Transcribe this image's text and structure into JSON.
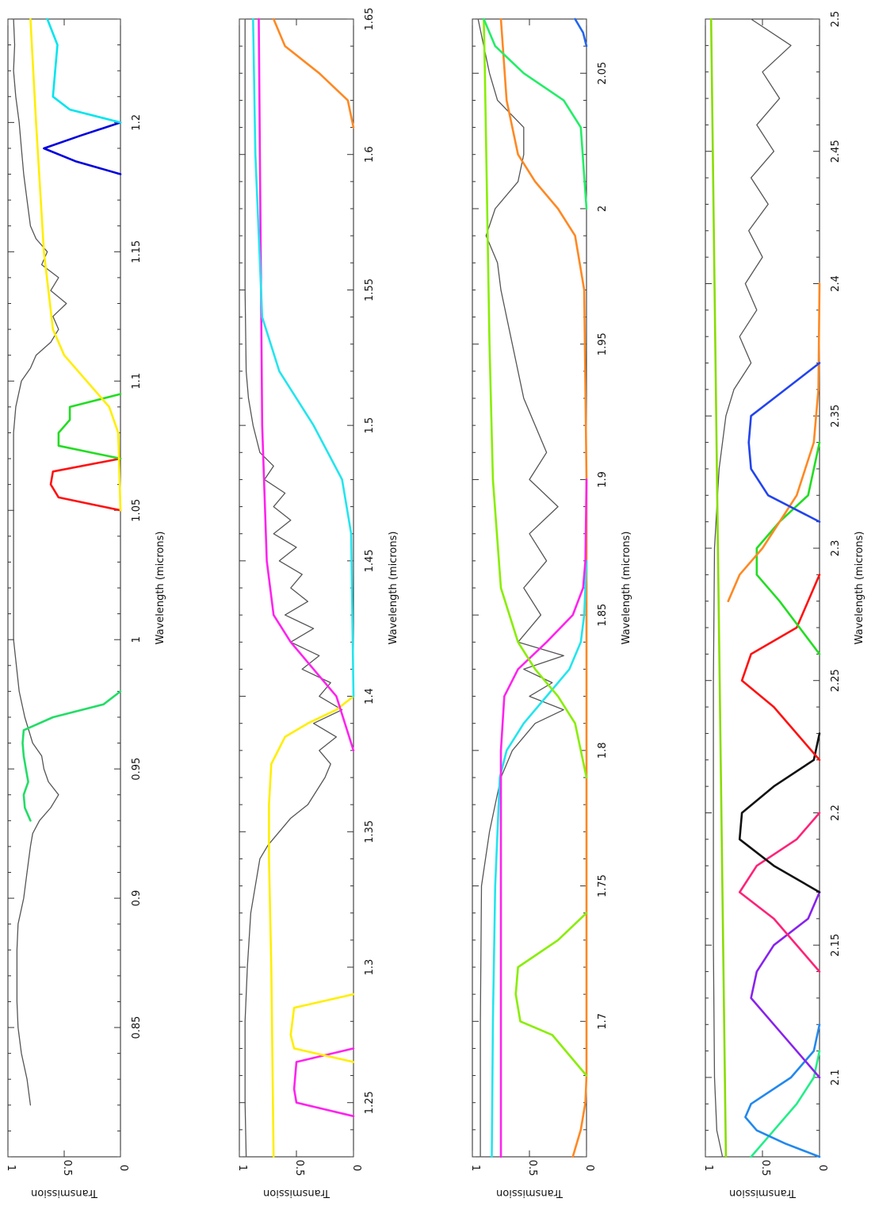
{
  "chart_data": [
    {
      "type": "line",
      "xlabel": "Wavelength (microns)",
      "ylabel": "Transmission",
      "xlim": [
        0.8,
        1.24
      ],
      "ylim": [
        0,
        1
      ],
      "xticks": [
        0.85,
        0.9,
        0.95,
        1,
        1.05,
        1.1,
        1.15,
        1.2
      ],
      "xtick_labels": [
        "0.85",
        "0.9",
        "0.95",
        "1",
        "1.05",
        "1.1",
        "1.15",
        "1.2"
      ],
      "yticks": [
        0,
        0.5,
        1
      ],
      "ytick_labels": [
        "0",
        "0.5",
        "1"
      ],
      "series": [
        {
          "color": "#555555",
          "x": [
            0.82,
            0.83,
            0.84,
            0.85,
            0.86,
            0.87,
            0.88,
            0.89,
            0.9,
            0.91,
            0.92,
            0.925,
            0.93,
            0.935,
            0.94,
            0.945,
            0.95,
            0.955,
            0.96,
            0.97,
            0.98,
            1.0,
            1.02,
            1.04,
            1.06,
            1.08,
            1.09,
            1.1,
            1.105,
            1.11,
            1.115,
            1.12,
            1.125,
            1.13,
            1.135,
            1.14,
            1.145,
            1.15,
            1.155,
            1.16,
            1.17,
            1.18,
            1.19,
            1.2,
            1.21,
            1.22,
            1.23,
            1.24
          ],
          "y": [
            0.8,
            0.83,
            0.88,
            0.91,
            0.92,
            0.92,
            0.92,
            0.91,
            0.86,
            0.83,
            0.8,
            0.78,
            0.72,
            0.62,
            0.55,
            0.64,
            0.68,
            0.7,
            0.78,
            0.85,
            0.9,
            0.95,
            0.95,
            0.95,
            0.95,
            0.95,
            0.93,
            0.88,
            0.8,
            0.75,
            0.62,
            0.55,
            0.6,
            0.48,
            0.62,
            0.55,
            0.7,
            0.65,
            0.75,
            0.8,
            0.83,
            0.86,
            0.88,
            0.9,
            0.93,
            0.95,
            0.94,
            0.95
          ]
        },
        {
          "color": "#22dd66",
          "x": [
            0.93,
            0.935,
            0.94,
            0.945,
            0.95,
            0.955,
            0.96,
            0.965,
            0.97,
            0.975,
            0.98
          ],
          "y": [
            0.8,
            0.85,
            0.86,
            0.82,
            0.84,
            0.86,
            0.87,
            0.86,
            0.6,
            0.15,
            0
          ]
        },
        {
          "color": "#ff1111",
          "x": [
            1.05,
            1.055,
            1.06,
            1.065,
            1.07
          ],
          "y": [
            0,
            0.55,
            0.62,
            0.6,
            0
          ]
        },
        {
          "color": "#22dd22",
          "x": [
            1.07,
            1.075,
            1.08,
            1.085,
            1.09,
            1.095
          ],
          "y": [
            0,
            0.55,
            0.55,
            0.45,
            0.45,
            0
          ]
        },
        {
          "color": "#ffee00",
          "x": [
            1.05,
            1.08,
            1.09,
            1.1,
            1.11,
            1.12,
            1.15,
            1.2,
            1.24
          ],
          "y": [
            0,
            0.02,
            0.1,
            0.3,
            0.5,
            0.6,
            0.68,
            0.75,
            0.8
          ]
        },
        {
          "color": "#0000dd",
          "x": [
            1.18,
            1.185,
            1.19,
            1.195,
            1.2
          ],
          "y": [
            0,
            0.4,
            0.68,
            0.35,
            0
          ]
        },
        {
          "color": "#00e5ee",
          "x": [
            1.2,
            1.205,
            1.21,
            1.22,
            1.23,
            1.24
          ],
          "y": [
            0,
            0.45,
            0.6,
            0.58,
            0.56,
            0.65
          ]
        }
      ]
    },
    {
      "type": "line",
      "xlabel": "Wavelength (microns)",
      "ylabel": "Transmission",
      "xlim": [
        1.23,
        1.65
      ],
      "ylim": [
        0,
        1
      ],
      "xticks": [
        1.25,
        1.3,
        1.35,
        1.4,
        1.45,
        1.5,
        1.55,
        1.6,
        1.65
      ],
      "xtick_labels": [
        "1.25",
        "1.3",
        "1.35",
        "1.4",
        "1.45",
        "1.5",
        "1.55",
        "1.6",
        "1.65"
      ],
      "yticks": [
        0,
        0.5,
        1
      ],
      "ytick_labels": [
        "0",
        "0.5",
        "1"
      ],
      "series": [
        {
          "color": "#555555",
          "x": [
            1.23,
            1.25,
            1.28,
            1.3,
            1.32,
            1.34,
            1.345,
            1.35,
            1.355,
            1.36,
            1.37,
            1.375,
            1.38,
            1.385,
            1.39,
            1.395,
            1.4,
            1.405,
            1.41,
            1.415,
            1.42,
            1.425,
            1.43,
            1.435,
            1.44,
            1.445,
            1.45,
            1.455,
            1.46,
            1.465,
            1.47,
            1.475,
            1.48,
            1.485,
            1.49,
            1.5,
            1.51,
            1.52,
            1.55,
            1.6,
            1.62,
            1.65
          ],
          "y": [
            0.94,
            0.95,
            0.95,
            0.93,
            0.9,
            0.82,
            0.75,
            0.65,
            0.55,
            0.4,
            0.25,
            0.2,
            0.3,
            0.15,
            0.35,
            0.1,
            0.3,
            0.2,
            0.45,
            0.3,
            0.55,
            0.35,
            0.6,
            0.4,
            0.55,
            0.45,
            0.65,
            0.5,
            0.7,
            0.55,
            0.7,
            0.6,
            0.78,
            0.7,
            0.82,
            0.88,
            0.92,
            0.94,
            0.95,
            0.95,
            0.95,
            0.95
          ]
        },
        {
          "color": "#ffee00",
          "x": [
            1.23,
            1.3,
            1.34,
            1.36,
            1.375,
            1.385,
            1.39,
            1.395,
            1.4
          ],
          "y": [
            0.7,
            0.72,
            0.74,
            0.74,
            0.72,
            0.6,
            0.4,
            0.15,
            0
          ]
        },
        {
          "color": "#ff22ee",
          "x": [
            1.245,
            1.25,
            1.255,
            1.265,
            1.27
          ],
          "y": [
            0,
            0.5,
            0.52,
            0.5,
            0
          ]
        },
        {
          "color": "#ffee00",
          "x": [
            1.265,
            1.27,
            1.275,
            1.285,
            1.29
          ],
          "y": [
            0,
            0.52,
            0.55,
            0.52,
            0
          ]
        },
        {
          "color": "#ff22ee",
          "x": [
            1.38,
            1.4,
            1.41,
            1.42,
            1.43,
            1.45,
            1.5,
            1.6,
            1.65
          ],
          "y": [
            0,
            0.15,
            0.35,
            0.55,
            0.7,
            0.76,
            0.8,
            0.82,
            0.83
          ]
        },
        {
          "color": "#22e5ee",
          "x": [
            1.4,
            1.46,
            1.48,
            1.5,
            1.52,
            1.54,
            1.6,
            1.65
          ],
          "y": [
            0,
            0.02,
            0.1,
            0.35,
            0.65,
            0.8,
            0.86,
            0.88
          ]
        },
        {
          "color": "#ff8822",
          "x": [
            1.61,
            1.62,
            1.63,
            1.64,
            1.65
          ],
          "y": [
            0,
            0.05,
            0.3,
            0.6,
            0.7
          ]
        }
      ]
    },
    {
      "type": "line",
      "xlabel": "Wavelength (microns)",
      "ylabel": "Transmission",
      "xlim": [
        1.65,
        2.07
      ],
      "ylim": [
        0,
        1
      ],
      "xticks": [
        1.7,
        1.75,
        1.8,
        1.85,
        1.9,
        1.95,
        2,
        2.05
      ],
      "xtick_labels": [
        "1.7",
        "1.75",
        "1.8",
        "1.85",
        "1.9",
        "1.95",
        "2",
        "2.05"
      ],
      "yticks": [
        0,
        0.5,
        1
      ],
      "ytick_labels": [
        "0",
        "0.5",
        "1"
      ],
      "series": [
        {
          "color": "#555555",
          "x": [
            1.65,
            1.7,
            1.75,
            1.77,
            1.78,
            1.79,
            1.8,
            1.81,
            1.815,
            1.82,
            1.825,
            1.83,
            1.835,
            1.84,
            1.85,
            1.86,
            1.87,
            1.88,
            1.89,
            1.9,
            1.91,
            1.92,
            1.93,
            1.94,
            1.95,
            1.96,
            1.97,
            1.98,
            1.99,
            2.0,
            2.01,
            2.02,
            2.03,
            2.04,
            2.05,
            2.06,
            2.07
          ],
          "y": [
            0.93,
            0.93,
            0.92,
            0.85,
            0.8,
            0.75,
            0.65,
            0.45,
            0.2,
            0.5,
            0.3,
            0.55,
            0.2,
            0.6,
            0.4,
            0.55,
            0.35,
            0.5,
            0.25,
            0.5,
            0.35,
            0.45,
            0.55,
            0.6,
            0.65,
            0.7,
            0.75,
            0.78,
            0.88,
            0.8,
            0.6,
            0.55,
            0.55,
            0.78,
            0.85,
            0.9,
            0.95
          ]
        },
        {
          "color": "#ff8822",
          "x": [
            1.65,
            1.66,
            1.67,
            1.68,
            1.7,
            1.9,
            1.97,
            1.99,
            2.0,
            2.01,
            2.02,
            2.04,
            2.07
          ],
          "y": [
            0.12,
            0.05,
            0.01,
            0,
            0,
            0,
            0.02,
            0.1,
            0.25,
            0.45,
            0.6,
            0.7,
            0.75
          ]
        },
        {
          "color": "#88ee00",
          "x": [
            1.68,
            1.695,
            1.7,
            1.71,
            1.72,
            1.73,
            1.74
          ],
          "y": [
            0,
            0.3,
            0.58,
            0.62,
            0.6,
            0.25,
            0
          ]
        },
        {
          "color": "#22e5ee",
          "x": [
            1.65,
            1.7,
            1.75,
            1.79,
            1.8,
            1.81,
            1.82,
            1.83,
            1.84,
            1.85,
            1.87
          ],
          "y": [
            0.83,
            0.82,
            0.8,
            0.76,
            0.7,
            0.55,
            0.35,
            0.15,
            0.05,
            0.02,
            0
          ]
        },
        {
          "color": "#ff22ee",
          "x": [
            1.65,
            1.7,
            1.8,
            1.82,
            1.83,
            1.84,
            1.85,
            1.86,
            1.87,
            1.9
          ],
          "y": [
            0.75,
            0.75,
            0.75,
            0.72,
            0.6,
            0.35,
            0.12,
            0.03,
            0.01,
            0
          ]
        },
        {
          "color": "#88ee00",
          "x": [
            1.79,
            1.81,
            1.82,
            1.83,
            1.84,
            1.86,
            1.9,
            1.95,
            2.0,
            2.05,
            2.07
          ],
          "y": [
            0,
            0.1,
            0.25,
            0.45,
            0.6,
            0.75,
            0.82,
            0.85,
            0.87,
            0.89,
            0.9
          ]
        },
        {
          "color": "#22ee66",
          "x": [
            2.0,
            2.03,
            2.04,
            2.05,
            2.06,
            2.07
          ],
          "y": [
            0,
            0.05,
            0.2,
            0.55,
            0.8,
            0.9
          ]
        },
        {
          "color": "#2266ee",
          "x": [
            2.06,
            2.065,
            2.07
          ],
          "y": [
            0,
            0.03,
            0.1
          ]
        }
      ]
    },
    {
      "type": "line",
      "xlabel": "Wavelength (microns)",
      "ylabel": "Transmission",
      "xlim": [
        2.07,
        2.5
      ],
      "ylim": [
        0,
        1
      ],
      "xticks": [
        2.1,
        2.15,
        2.2,
        2.25,
        2.3,
        2.35,
        2.4,
        2.45,
        2.5
      ],
      "xtick_labels": [
        "2.1",
        "2.15",
        "2.2",
        "2.25",
        "2.3",
        "2.35",
        "2.4",
        "2.45",
        "2.5"
      ],
      "yticks": [
        0,
        0.5,
        1
      ],
      "ytick_labels": [
        "0",
        "0.5",
        "1"
      ],
      "series": [
        {
          "color": "#555555",
          "x": [
            2.07,
            2.08,
            2.1,
            2.15,
            2.2,
            2.25,
            2.3,
            2.33,
            2.35,
            2.36,
            2.37,
            2.38,
            2.39,
            2.4,
            2.41,
            2.42,
            2.43,
            2.44,
            2.45,
            2.46,
            2.47,
            2.48,
            2.49,
            2.5
          ],
          "y": [
            0.85,
            0.9,
            0.92,
            0.93,
            0.93,
            0.93,
            0.92,
            0.88,
            0.82,
            0.75,
            0.6,
            0.7,
            0.55,
            0.65,
            0.5,
            0.62,
            0.45,
            0.6,
            0.4,
            0.55,
            0.35,
            0.5,
            0.25,
            0.6
          ]
        },
        {
          "color": "#88dd00",
          "x": [
            2.07,
            2.2,
            2.3,
            2.4,
            2.5
          ],
          "y": [
            0.82,
            0.86,
            0.89,
            0.92,
            0.95
          ]
        },
        {
          "color": "#22ee88",
          "x": [
            2.07,
            2.08,
            2.09,
            2.1,
            2.11
          ],
          "y": [
            0.6,
            0.4,
            0.2,
            0.05,
            0
          ]
        },
        {
          "color": "#2288ee",
          "x": [
            2.07,
            2.075,
            2.08,
            2.085,
            2.09,
            2.1,
            2.11,
            2.12
          ],
          "y": [
            0,
            0.3,
            0.55,
            0.65,
            0.6,
            0.25,
            0.05,
            0
          ]
        },
        {
          "color": "#8822ee",
          "x": [
            2.1,
            2.12,
            2.13,
            2.14,
            2.15,
            2.16,
            2.17
          ],
          "y": [
            0,
            0.4,
            0.6,
            0.55,
            0.4,
            0.1,
            0
          ]
        },
        {
          "color": "#ff2277",
          "x": [
            2.14,
            2.16,
            2.17,
            2.18,
            2.19,
            2.2
          ],
          "y": [
            0,
            0.4,
            0.7,
            0.55,
            0.2,
            0
          ]
        },
        {
          "color": "#111111",
          "x": [
            2.17,
            2.18,
            2.19,
            2.2,
            2.21,
            2.22,
            2.23
          ],
          "y": [
            0,
            0.4,
            0.7,
            0.68,
            0.4,
            0.05,
            0
          ]
        },
        {
          "color": "#ff1111",
          "x": [
            2.22,
            2.24,
            2.25,
            2.26,
            2.27,
            2.29
          ],
          "y": [
            0,
            0.4,
            0.68,
            0.6,
            0.2,
            0
          ]
        },
        {
          "color": "#22dd22",
          "x": [
            2.26,
            2.28,
            2.29,
            2.3,
            2.31,
            2.32,
            2.34
          ],
          "y": [
            0,
            0.35,
            0.55,
            0.55,
            0.35,
            0.1,
            0
          ]
        },
        {
          "color": "#ff8822",
          "x": [
            2.28,
            2.29,
            2.3,
            2.32,
            2.34,
            2.36,
            2.4
          ],
          "y": [
            0.8,
            0.7,
            0.5,
            0.2,
            0.05,
            0.01,
            0
          ]
        },
        {
          "color": "#2244ee",
          "x": [
            2.31,
            2.32,
            2.33,
            2.34,
            2.35,
            2.36,
            2.37
          ],
          "y": [
            0,
            0.45,
            0.6,
            0.62,
            0.6,
            0.3,
            0
          ]
        }
      ]
    }
  ]
}
